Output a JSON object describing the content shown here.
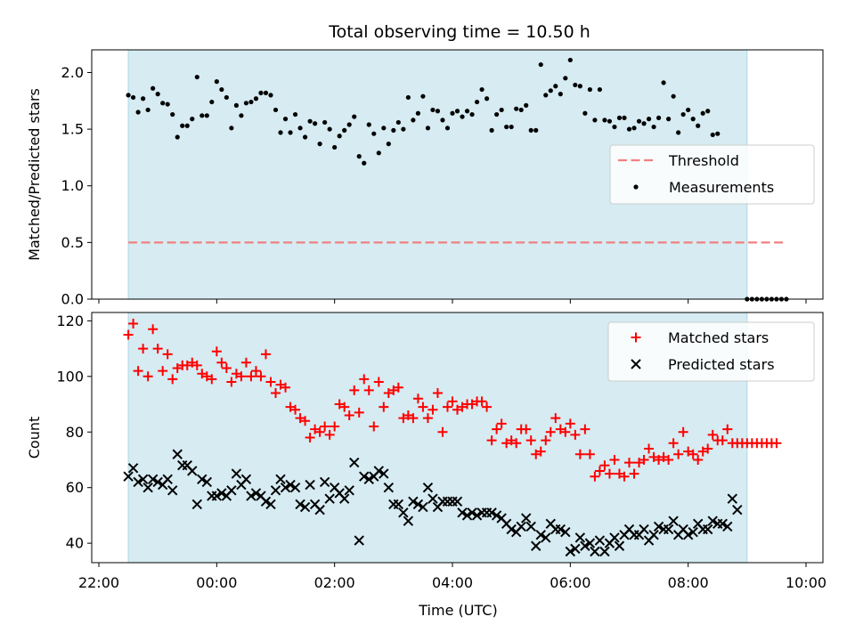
{
  "chart_data": [
    {
      "type": "scatter",
      "title": "Total observing time = 10.50 h",
      "xlabel": "",
      "ylabel": "Matched/Predicted stars",
      "ylim": [
        0,
        2.2
      ],
      "yticks": [
        "0.0",
        "0.5",
        "1.0",
        "1.5",
        "2.0"
      ],
      "shaded_span": [
        "22:30",
        "09:00"
      ],
      "shade_color": "#add8e6",
      "legend_position": "center-right",
      "threshold": {
        "name": "Threshold",
        "value": 0.5,
        "x_range": [
          "22:30",
          "09:40"
        ],
        "color": "#f08080",
        "style": "dashed"
      },
      "series": [
        {
          "name": "Measurements",
          "color": "#000000",
          "marker": "dot",
          "x_start": "22:30",
          "x_step_minutes": 5,
          "values": [
            1.8,
            1.78,
            1.65,
            1.77,
            1.67,
            1.86,
            1.81,
            1.73,
            1.72,
            1.63,
            1.43,
            1.53,
            1.53,
            1.59,
            1.96,
            1.62,
            1.62,
            1.74,
            1.92,
            1.85,
            1.78,
            1.51,
            1.71,
            1.62,
            1.73,
            1.74,
            1.77,
            1.82,
            1.82,
            1.8,
            1.67,
            1.47,
            1.59,
            1.47,
            1.63,
            1.51,
            1.43,
            1.57,
            1.55,
            1.37,
            1.56,
            1.5,
            1.34,
            1.44,
            1.49,
            1.54,
            1.61,
            1.26,
            1.2,
            1.54,
            1.46,
            1.29,
            1.51,
            1.37,
            1.49,
            1.56,
            1.5,
            1.78,
            1.58,
            1.64,
            1.79,
            1.51,
            1.67,
            1.66,
            1.58,
            1.51,
            1.64,
            1.66,
            1.61,
            1.66,
            1.63,
            1.74,
            1.85,
            1.77,
            1.49,
            1.63,
            1.67,
            1.52,
            1.52,
            1.68,
            1.67,
            1.71,
            1.49,
            1.49,
            2.07,
            1.8,
            1.84,
            1.88,
            1.81,
            1.95,
            2.11,
            1.89,
            1.88,
            1.64,
            1.85,
            1.58,
            1.85,
            1.58,
            1.57,
            1.52,
            1.6,
            1.6,
            1.5,
            1.51,
            1.57,
            1.55,
            1.59,
            1.52,
            1.6,
            1.91,
            1.59,
            1.79,
            1.47,
            1.63,
            1.67,
            1.59,
            1.53,
            1.64,
            1.66,
            1.45,
            1.46
          ]
        },
        {
          "name": "",
          "color": "#000000",
          "marker": "dot",
          "x_start": "09:00",
          "x_step_minutes": 5,
          "values": [
            0,
            0,
            0,
            0,
            0,
            0,
            0,
            0,
            0
          ]
        }
      ]
    },
    {
      "type": "scatter",
      "title": "",
      "xlabel": "Time (UTC)",
      "ylabel": "Count",
      "ylim": [
        33,
        123
      ],
      "yticks": [
        "40",
        "60",
        "80",
        "100",
        "120"
      ],
      "xticks": [
        "22:00",
        "00:00",
        "02:00",
        "04:00",
        "06:00",
        "08:00",
        "10:00"
      ],
      "shaded_span": [
        "22:30",
        "09:00"
      ],
      "shade_color": "#add8e6",
      "legend_position": "top-right",
      "series": [
        {
          "name": "Matched stars",
          "color": "#ff0000",
          "marker": "plus",
          "x_start": "22:30",
          "x_step_minutes": 5,
          "values": [
            115,
            119,
            102,
            110,
            100,
            117,
            110,
            102,
            108,
            99,
            103,
            104,
            104,
            105,
            104,
            101,
            100,
            99,
            109,
            105,
            103,
            98,
            101,
            100,
            105,
            100,
            102,
            100,
            108,
            98,
            94,
            97,
            96,
            89,
            88,
            85,
            84,
            78,
            81,
            80,
            82,
            79,
            82,
            90,
            89,
            86,
            95,
            87,
            99,
            95,
            82,
            98,
            89,
            94,
            95,
            96,
            85,
            86,
            85,
            92,
            89,
            85,
            88,
            94,
            80,
            89,
            91,
            88,
            89,
            90,
            90,
            91,
            91,
            89,
            77,
            81,
            83,
            76,
            77,
            76,
            81,
            81,
            77,
            72,
            73,
            77,
            80,
            85,
            81,
            80,
            83,
            79,
            72,
            81,
            72,
            64,
            66,
            68,
            65,
            70,
            65,
            64,
            69,
            65,
            69,
            70,
            74,
            71,
            70,
            71,
            70,
            76,
            72,
            80,
            73,
            72,
            70,
            73,
            74,
            79,
            77,
            77,
            81,
            76,
            76,
            76,
            76,
            76,
            76,
            76,
            76,
            76,
            76
          ]
        },
        {
          "name": "Predicted stars",
          "color": "#000000",
          "marker": "x",
          "x_start": "22:30",
          "x_step_minutes": 5,
          "values": [
            64,
            67,
            62,
            63,
            60,
            63,
            62,
            61,
            63,
            59,
            72,
            68,
            68,
            66,
            54,
            63,
            62,
            57,
            57,
            58,
            57,
            59,
            65,
            61,
            63,
            57,
            58,
            57,
            55,
            54,
            59,
            63,
            60,
            61,
            60,
            54,
            53,
            61,
            54,
            52,
            62,
            56,
            60,
            58,
            56,
            59,
            69,
            41,
            64,
            63,
            64,
            66,
            65,
            60,
            54,
            54,
            51,
            48,
            55,
            54,
            53,
            60,
            56,
            53,
            55,
            55,
            55,
            55,
            51,
            50,
            51,
            50,
            51,
            51,
            51,
            50,
            49,
            47,
            45,
            44,
            46,
            49,
            46,
            39,
            43,
            42,
            47,
            45,
            45,
            44,
            37,
            38,
            42,
            39,
            40,
            37,
            41,
            37,
            40,
            42,
            39,
            43,
            45,
            43,
            43,
            45,
            41,
            43,
            46,
            45,
            45,
            48,
            43,
            45,
            43,
            44,
            47,
            45,
            45,
            48,
            47,
            47,
            46,
            56,
            52
          ]
        }
      ]
    }
  ]
}
